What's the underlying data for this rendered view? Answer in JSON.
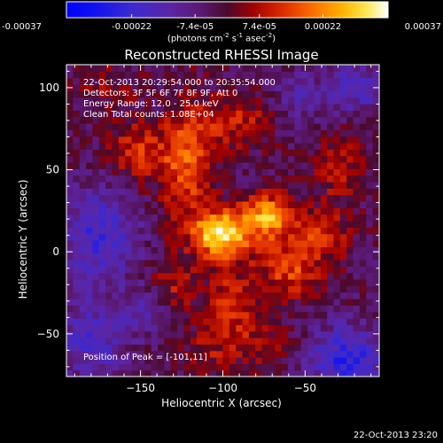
{
  "figure": {
    "title": "Reconstructed RHESSI Image",
    "colorbar": {
      "tick_labels": [
        "-0.00037",
        "-0.00022",
        "-7.4e-05",
        "7.4e-05",
        "0.00022",
        "0.00037"
      ],
      "units": "(photons cm^-2 s^-1 asec^-2)",
      "units_parts": [
        "(photons cm",
        "-2",
        " s",
        "-1",
        " asec",
        "-2",
        ")"
      ]
    },
    "info_lines": [
      "22-Oct-2013 20:29:54.000 to 20:35:54.000",
      "Detectors: 3F 5F 6F 7F 8F 9F, Att 0",
      "Energy Range: 12.0 - 25.0 keV",
      "Clean     Total counts: 1.08E+04"
    ],
    "peak_label": "Position of Peak = [-101,11]",
    "timestamp": "22-Oct-2013 23:20"
  },
  "chart_data": {
    "type": "heatmap",
    "title": "Reconstructed RHESSI Image",
    "xlabel": "Heliocentric X (arcsec)",
    "ylabel": "Heliocentric Y (arcsec)",
    "xlim": [
      -195,
      -5
    ],
    "ylim": [
      -76,
      114
    ],
    "xticks": [
      -150,
      -100,
      -50
    ],
    "yticks": [
      -50,
      0,
      50,
      100
    ],
    "color_range": [
      -0.00037,
      0.00037
    ],
    "colorbar_ticks": [
      -0.00037,
      -0.00022,
      -7.4e-05,
      7.4e-05,
      0.00022,
      0.00037
    ],
    "colormap": "blue-purple-red-orange-yellow-white",
    "grid": false,
    "peak_position": [
      -101,
      11
    ],
    "pixel_size_arcsec": 4,
    "grid_nx": 48,
    "grid_ny": 48,
    "sources": [
      {
        "x": -101,
        "y": 11,
        "amp": 0.00037,
        "sx": 12,
        "sy": 10
      },
      {
        "x": -72,
        "y": 22,
        "amp": 0.00029,
        "sx": 11,
        "sy": 9
      },
      {
        "x": -122,
        "y": 55,
        "amp": 0.0002,
        "sx": 11,
        "sy": 24
      },
      {
        "x": -152,
        "y": 62,
        "amp": 0.00015,
        "sx": 12,
        "sy": 12
      },
      {
        "x": -92,
        "y": 80,
        "amp": 0.00013,
        "sx": 14,
        "sy": 11
      },
      {
        "x": -95,
        "y": -30,
        "amp": 0.00015,
        "sx": 10,
        "sy": 14
      },
      {
        "x": -60,
        "y": -10,
        "amp": 0.00017,
        "sx": 14,
        "sy": 12
      },
      {
        "x": -40,
        "y": 10,
        "amp": 0.00014,
        "sx": 12,
        "sy": 10
      },
      {
        "x": -30,
        "y": 50,
        "amp": 0.00011,
        "sx": 11,
        "sy": 14
      },
      {
        "x": -130,
        "y": -20,
        "amp": 0.00011,
        "sx": 10,
        "sy": 12
      },
      {
        "x": -80,
        "y": -55,
        "amp": 9e-05,
        "sx": 14,
        "sy": 10
      },
      {
        "x": -170,
        "y": 100,
        "amp": 6e-05,
        "sx": 12,
        "sy": 10
      },
      {
        "x": -110,
        "y": -60,
        "amp": 8e-05,
        "sx": 10,
        "sy": 10
      }
    ],
    "negative_regions": [
      {
        "x": -175,
        "y": 10,
        "amp": -0.00018,
        "sx": 16,
        "sy": 22
      },
      {
        "x": -180,
        "y": -55,
        "amp": -0.00016,
        "sx": 14,
        "sy": 16
      },
      {
        "x": -25,
        "y": -65,
        "amp": -0.00022,
        "sx": 16,
        "sy": 14
      },
      {
        "x": -20,
        "y": 100,
        "amp": -0.00013,
        "sx": 14,
        "sy": 12
      },
      {
        "x": -145,
        "y": -35,
        "amp": -0.00011,
        "sx": 10,
        "sy": 10
      },
      {
        "x": -55,
        "y": 95,
        "amp": -0.0001,
        "sx": 10,
        "sy": 10
      }
    ],
    "background": -3e-05,
    "texture_amplitude": 6e-05,
    "texture_seed": 7
  }
}
